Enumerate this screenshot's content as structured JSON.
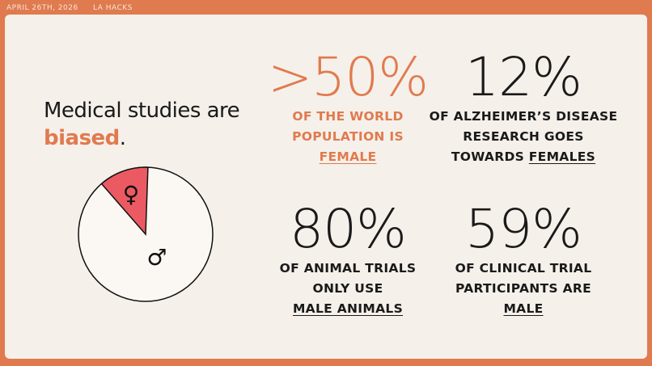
{
  "header": {
    "date": "APRIL 26TH, 2026",
    "event": "LA HACKS"
  },
  "title": {
    "line1": "Medical studies are",
    "emphasis": "biased",
    "end": "."
  },
  "pie": {
    "female_symbol": "♀",
    "male_symbol": "♂"
  },
  "stats": [
    {
      "figure": ">50%",
      "accent": true,
      "lines": [
        {
          "text": "OF THE WORLD"
        },
        {
          "text": "POPULATION IS"
        },
        {
          "underlined": "FEMALE"
        }
      ]
    },
    {
      "figure": "12%",
      "accent": false,
      "lines": [
        {
          "text": "OF ALZHEIMER’S DISEASE"
        },
        {
          "text": "RESEARCH GOES"
        },
        {
          "text": "TOWARDS",
          "underlined": "FEMALES"
        }
      ]
    },
    {
      "figure": "80%",
      "accent": false,
      "lines": [
        {
          "text": "OF ANIMAL TRIALS"
        },
        {
          "text": "ONLY USE"
        },
        {
          "underlined": "MALE ANIMALS"
        }
      ]
    },
    {
      "figure": "59%",
      "accent": false,
      "lines": [
        {
          "text": "OF CLINICAL TRIAL"
        },
        {
          "text": "PARTICIPANTS ARE"
        },
        {
          "underlined": "MALE"
        }
      ]
    }
  ]
}
